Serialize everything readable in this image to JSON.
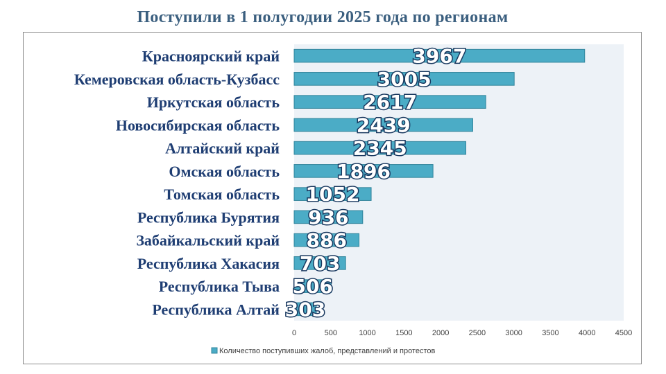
{
  "title": "Поступили в 1 полугодии 2025 года по регионам",
  "colors": {
    "bar_fill": "#4bacc6",
    "bar_stroke": "#31859c",
    "plot_bg": "#edf2f7",
    "title": "#3b5f7f",
    "category_text": "#1f3e73",
    "value_outline": "#17375e"
  },
  "chart_data": {
    "type": "bar",
    "orientation": "horizontal",
    "title": "Поступили в 1 полугодии 2025 года по регионам",
    "categories": [
      "Красноярский край",
      "Кемеровская область-Кузбасс",
      "Иркутская область",
      "Новосибирская область",
      "Алтайский край",
      "Омская область",
      "Томская область",
      "Республика Бурятия",
      "Забайкальский край",
      "Республика Хакасия",
      "Республика Тыва",
      "Республика Алтай"
    ],
    "series": [
      {
        "name": "Количество поступивших жалоб, представлений и протестов",
        "values": [
          3967,
          3005,
          2617,
          2439,
          2345,
          1896,
          1052,
          936,
          886,
          703,
          506,
          303
        ]
      }
    ],
    "xlim": [
      0,
      4500
    ],
    "xticks": [
      0,
      500,
      1000,
      1500,
      2000,
      2500,
      3000,
      3500,
      4000,
      4500
    ],
    "xlabel": "",
    "ylabel": "",
    "grid": false,
    "legend_position": "bottom",
    "data_labels": true
  }
}
